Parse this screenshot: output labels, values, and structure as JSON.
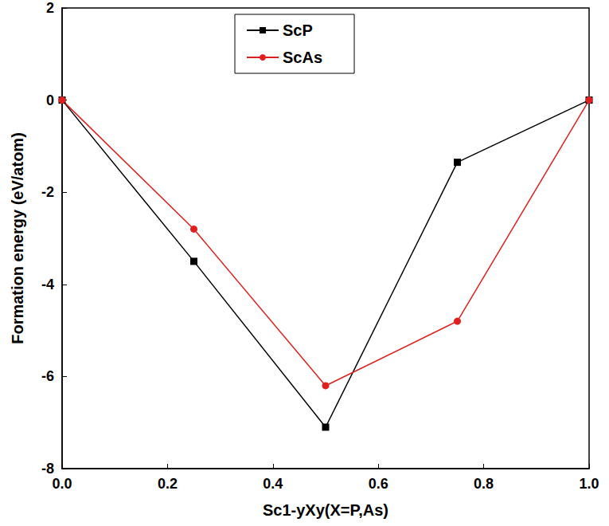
{
  "chart_data": {
    "type": "line",
    "x_label": "Sc1-yXy(X=P,As)",
    "y_label": "Formation energy (eV/atom)",
    "x": [
      0,
      0.25,
      0.5,
      0.75,
      1.0
    ],
    "series": [
      {
        "name": "ScP",
        "color": "#000000",
        "marker": "square",
        "values": [
          0,
          -3.5,
          -7.1,
          -1.35,
          0
        ]
      },
      {
        "name": "ScAs",
        "color": "#e0201f",
        "marker": "circle",
        "values": [
          0,
          -2.8,
          -6.2,
          -4.8,
          0
        ]
      }
    ],
    "xlim": [
      0,
      1.0
    ],
    "xticks": [
      {
        "value": 0,
        "label": "0.0"
      },
      {
        "value": 0.2,
        "label": "0.2"
      },
      {
        "value": 0.4,
        "label": "0.4"
      },
      {
        "value": 0.6,
        "label": "0.6"
      },
      {
        "value": 0.8,
        "label": "0.8"
      },
      {
        "value": 1.0,
        "label": "1.0"
      }
    ],
    "ylim": [
      -8,
      2
    ],
    "yticks": [
      -8,
      -6,
      -4,
      -2,
      0,
      2
    ],
    "legend": "upper center",
    "grid": false
  }
}
